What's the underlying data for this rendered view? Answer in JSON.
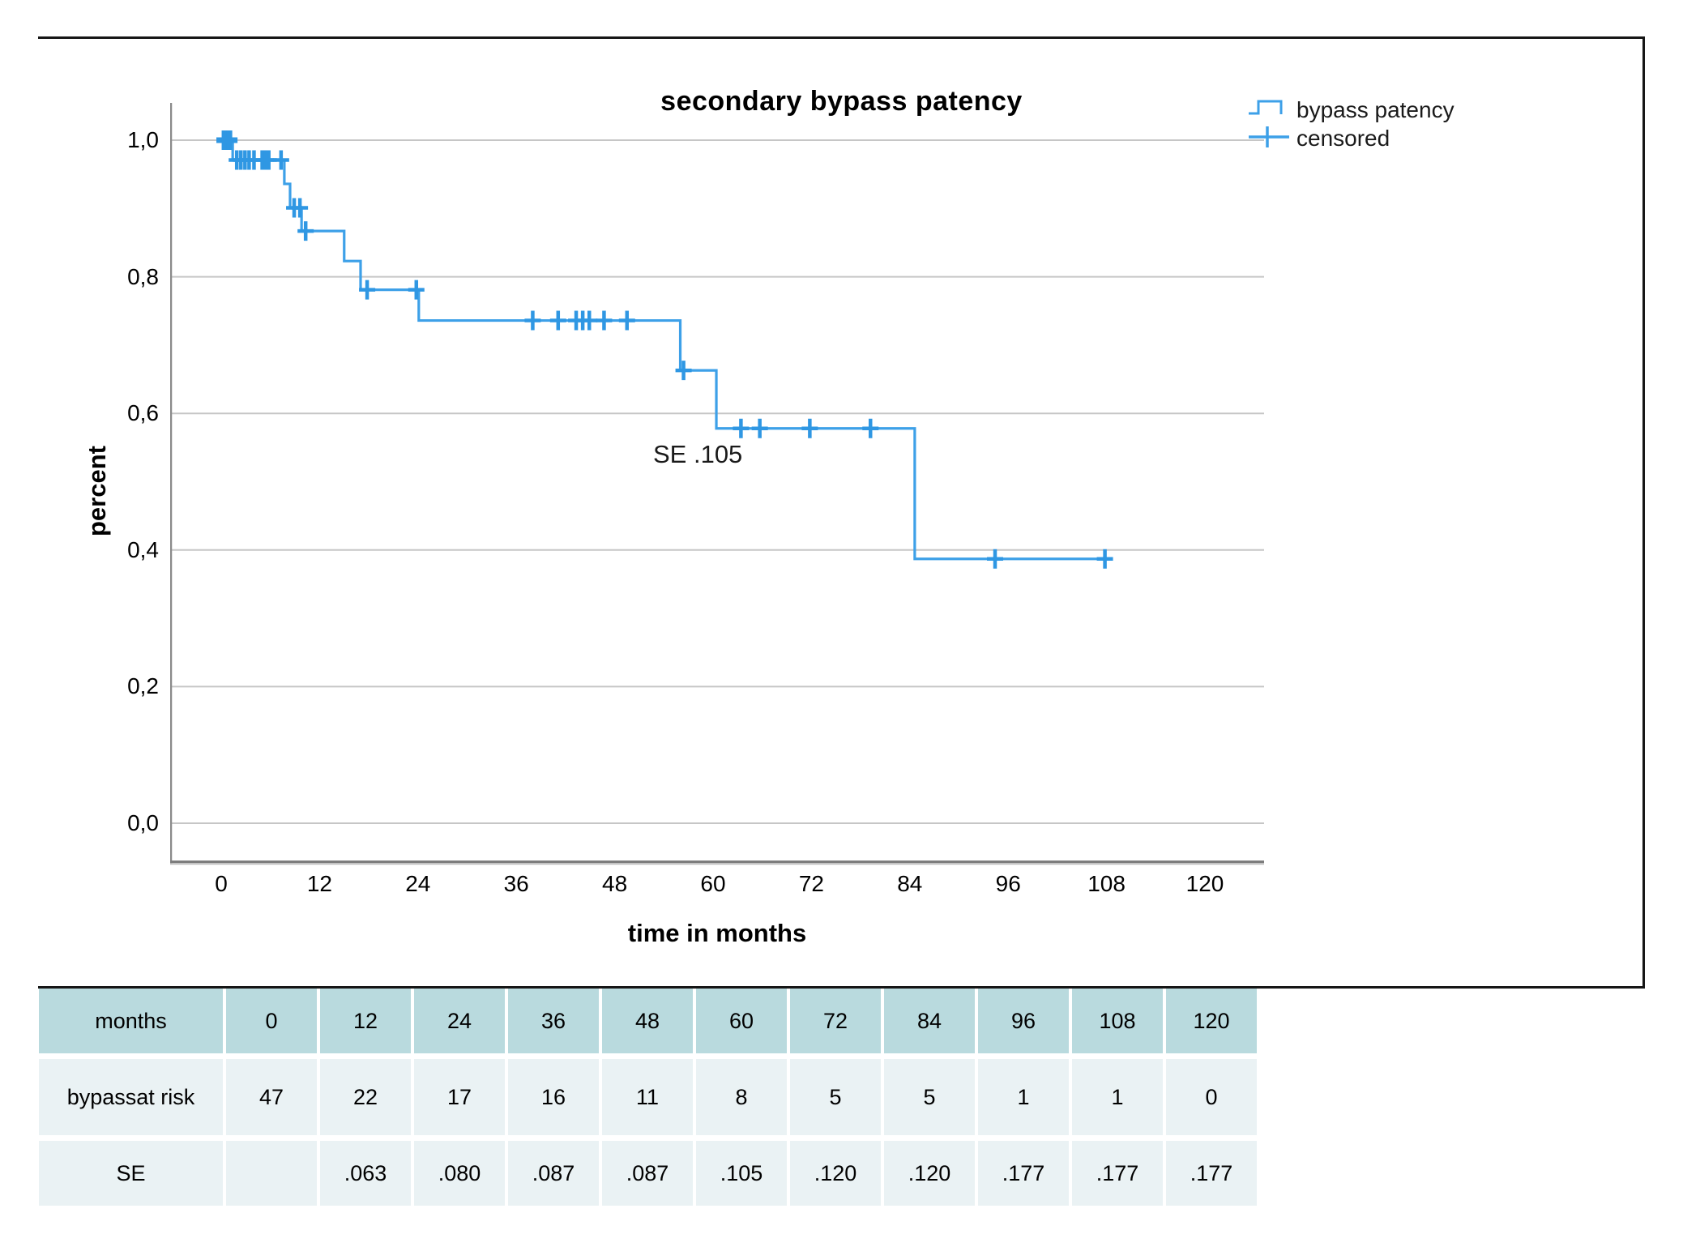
{
  "title": "secondary bypass patency",
  "legend": {
    "items": [
      {
        "label": "bypass patency",
        "symbol": "step-line"
      },
      {
        "label": "censored",
        "symbol": "plus-line"
      }
    ]
  },
  "annotation": {
    "text": "SE .105"
  },
  "chart_data": {
    "type": "line",
    "subtype": "kaplan-meier-step-function",
    "title": "secondary bypass patency",
    "xlabel": "time in months",
    "ylabel": "percent",
    "xlim": [
      0,
      127
    ],
    "ylim": [
      0,
      1.05
    ],
    "grid": "horizontal",
    "legend_position": "top-right",
    "x_ticks": [
      0,
      12,
      24,
      36,
      48,
      60,
      72,
      84,
      96,
      108,
      120
    ],
    "y_ticks": [
      {
        "v": 1.0,
        "label": "1,0"
      },
      {
        "v": 0.8,
        "label": "0,8"
      },
      {
        "v": 0.6,
        "label": "0,6"
      },
      {
        "v": 0.4,
        "label": "0,4"
      },
      {
        "v": 0.2,
        "label": "0,2"
      },
      {
        "v": 0.0,
        "label": "0,0"
      }
    ],
    "series": [
      {
        "name": "bypass patency",
        "type": "step",
        "points": [
          [
            0,
            1.0
          ],
          [
            1.4,
            0.971
          ],
          [
            7.7,
            0.936
          ],
          [
            8.4,
            0.901
          ],
          [
            9.8,
            0.867
          ],
          [
            15.0,
            0.823
          ],
          [
            17.0,
            0.781
          ],
          [
            24.1,
            0.736
          ],
          [
            56.0,
            0.663
          ],
          [
            60.4,
            0.578
          ],
          [
            84.6,
            0.387
          ]
        ],
        "end_month": 108.7
      }
    ],
    "censored": [
      [
        0.4,
        1.0
      ],
      [
        0.7,
        1.0
      ],
      [
        1.0,
        1.0
      ],
      [
        1.9,
        0.971
      ],
      [
        2.4,
        0.971
      ],
      [
        2.9,
        0.971
      ],
      [
        3.4,
        0.971
      ],
      [
        4.0,
        0.971
      ],
      [
        5.0,
        0.971
      ],
      [
        5.4,
        0.971
      ],
      [
        5.8,
        0.971
      ],
      [
        7.3,
        0.971
      ],
      [
        8.9,
        0.901
      ],
      [
        9.6,
        0.901
      ],
      [
        10.3,
        0.867
      ],
      [
        17.8,
        0.781
      ],
      [
        23.8,
        0.781
      ],
      [
        38.0,
        0.736
      ],
      [
        41.1,
        0.736
      ],
      [
        43.3,
        0.736
      ],
      [
        44.1,
        0.736
      ],
      [
        44.9,
        0.736
      ],
      [
        46.7,
        0.736
      ],
      [
        49.5,
        0.736
      ],
      [
        56.4,
        0.663
      ],
      [
        63.4,
        0.578
      ],
      [
        65.7,
        0.578
      ],
      [
        71.8,
        0.578
      ],
      [
        79.2,
        0.578
      ],
      [
        94.4,
        0.387
      ],
      [
        107.8,
        0.387
      ]
    ],
    "annotations": [
      {
        "text": "SE .105",
        "near": "x=53 months, y=0.53"
      }
    ]
  },
  "table": {
    "header": {
      "label": "months",
      "values": [
        "0",
        "12",
        "24",
        "36",
        "48",
        "60",
        "72",
        "84",
        "96",
        "108",
        "120"
      ]
    },
    "rows": [
      {
        "name": "bypass-at-risk",
        "label_lines": [
          "bypass",
          "at risk"
        ],
        "values": [
          "47",
          "22",
          "17",
          "16",
          "11",
          "8",
          "5",
          "5",
          "1",
          "1",
          "0"
        ]
      },
      {
        "name": "standard-error",
        "label_lines": [
          "SE"
        ],
        "values": [
          "",
          ".063",
          ".080",
          ".087",
          ".087",
          ".105",
          ".120",
          ".120",
          ".177",
          ".177",
          ".177"
        ]
      }
    ]
  },
  "colors": {
    "curve": "#3da0e8",
    "censor": "#2f97e3",
    "grid": "#c6c6c6",
    "axis": "#8a8a8a",
    "axis_shadow": "#c2c2c2",
    "frame": "#161616",
    "table_header_bg": "#b9dade",
    "table_body_bg": "#eaf2f4"
  }
}
